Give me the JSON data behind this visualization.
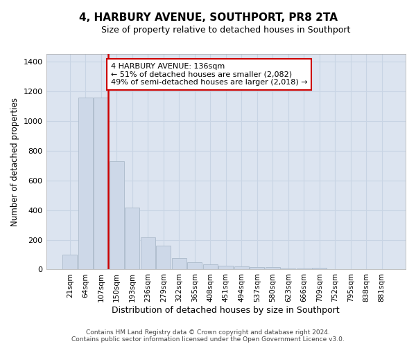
{
  "title": "4, HARBURY AVENUE, SOUTHPORT, PR8 2TA",
  "subtitle": "Size of property relative to detached houses in Southport",
  "xlabel": "Distribution of detached houses by size in Southport",
  "ylabel": "Number of detached properties",
  "footer_line1": "Contains HM Land Registry data © Crown copyright and database right 2024.",
  "footer_line2": "Contains public sector information licensed under the Open Government Licence v3.0.",
  "categories": [
    "21sqm",
    "64sqm",
    "107sqm",
    "150sqm",
    "193sqm",
    "236sqm",
    "279sqm",
    "322sqm",
    "365sqm",
    "408sqm",
    "451sqm",
    "494sqm",
    "537sqm",
    "580sqm",
    "623sqm",
    "666sqm",
    "709sqm",
    "752sqm",
    "795sqm",
    "838sqm",
    "881sqm"
  ],
  "values": [
    100,
    1155,
    1155,
    730,
    415,
    215,
    160,
    75,
    50,
    35,
    27,
    20,
    18,
    14,
    5,
    5,
    12,
    3,
    2,
    2,
    2
  ],
  "bar_color": "#cdd8e8",
  "bar_edge_color": "#b0bfcf",
  "grid_color": "#c8d4e4",
  "background_color": "#dce4f0",
  "vline_color": "#cc0000",
  "annotation_text": "4 HARBURY AVENUE: 136sqm\n← 51% of detached houses are smaller (2,082)\n49% of semi-detached houses are larger (2,018) →",
  "annotation_box_color": "#cc0000",
  "ylim": [
    0,
    1450
  ],
  "yticks": [
    0,
    200,
    400,
    600,
    800,
    1000,
    1200,
    1400
  ]
}
